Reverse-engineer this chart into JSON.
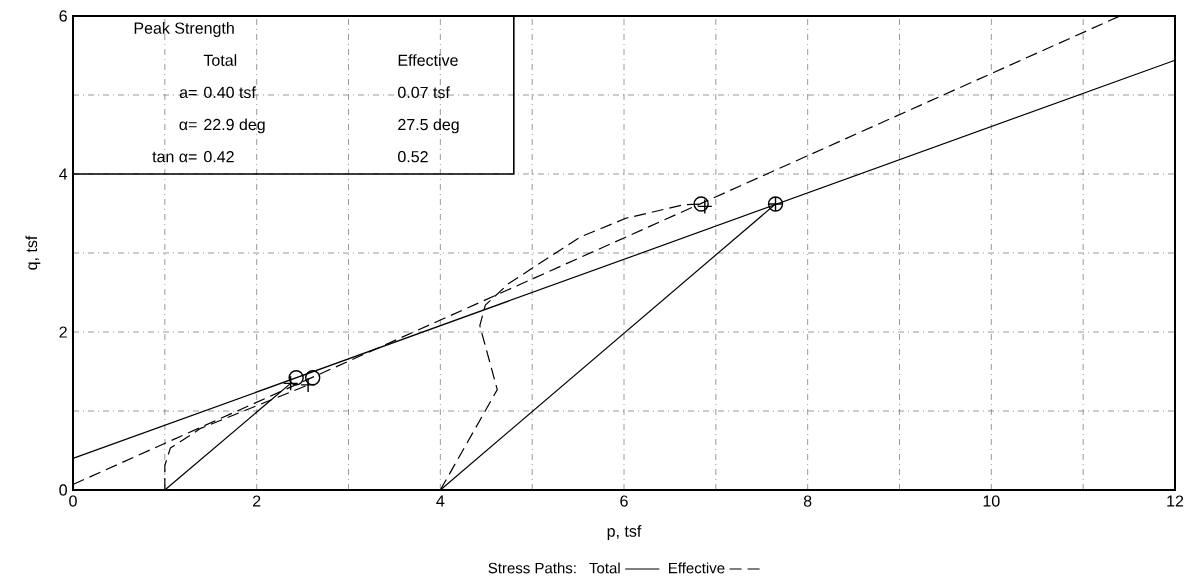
{
  "chart_data": {
    "type": "line",
    "xlabel": "p, tsf",
    "ylabel": "q, tsf",
    "legend_title": "Stress Paths:",
    "legend": "bottom",
    "grid": true,
    "xlim": [
      0,
      12
    ],
    "ylim": [
      0,
      6
    ],
    "xticks": [
      0,
      {
        "value": 1,
        "label": null
      },
      2,
      {
        "value": 3,
        "label": null
      },
      4,
      {
        "value": 5,
        "label": null
      },
      6,
      {
        "value": 7,
        "label": null
      },
      8,
      {
        "value": 9,
        "label": null
      },
      10,
      {
        "value": 11,
        "label": null
      },
      12
    ],
    "yticks": [
      0,
      {
        "value": 1,
        "label": null
      },
      2,
      {
        "value": 3,
        "label": null
      },
      4,
      {
        "value": 5,
        "label": null
      },
      6
    ],
    "annotations": [
      "Peak Strength",
      "Total",
      "Effective",
      "a=",
      "0.40 tsf",
      "0.07 tsf",
      "α=",
      "22.9 deg",
      "27.5 deg",
      "tan α=",
      "0.42",
      "0.52"
    ],
    "series": [
      {
        "name": "Total",
        "color": "#000000",
        "line_style": "solid",
        "x": [
          1,
          2.37
        ],
        "values": [
          0,
          1.35
        ]
      },
      {
        "color": "#000000",
        "line_style": "solid",
        "x": [
          4,
          7.65
        ],
        "values": [
          0,
          3.62
        ]
      },
      {
        "name": "Effective",
        "color": "#000000",
        "line_style": "dashed",
        "x": [
          1,
          1,
          1.06,
          1.39,
          2.56
        ],
        "values": [
          0,
          0.31,
          0.53,
          0.78,
          1.33
        ]
      },
      {
        "color": "#000000",
        "line_style": "dashed",
        "x": [
          4,
          4.62,
          4.43,
          4.49,
          4.74,
          5.52,
          6.02,
          6.65,
          6.84
        ],
        "values": [
          0,
          1.27,
          2.08,
          2.34,
          2.61,
          3.2,
          3.44,
          3.61,
          3.62
        ]
      },
      {
        "color": "#000000",
        "line_style": "solid",
        "x": [
          0,
          12
        ],
        "values": [
          0.4,
          5.44
        ]
      },
      {
        "color": "#000000",
        "line_style": "dashed",
        "x": [
          0,
          11.4
        ],
        "values": [
          0.07,
          6.0
        ]
      },
      {
        "type": "scatter",
        "color": "#000000",
        "marker": "circle",
        "x": [
          2.43,
          2.61,
          6.84,
          7.65
        ],
        "values": [
          1.42,
          1.42,
          3.62,
          3.62
        ]
      },
      {
        "type": "scatter",
        "color": "#000000",
        "marker": "cross",
        "x": [
          2.37,
          2.56,
          6.88,
          7.65
        ],
        "values": [
          1.35,
          1.33,
          3.59,
          3.62
        ]
      }
    ]
  }
}
